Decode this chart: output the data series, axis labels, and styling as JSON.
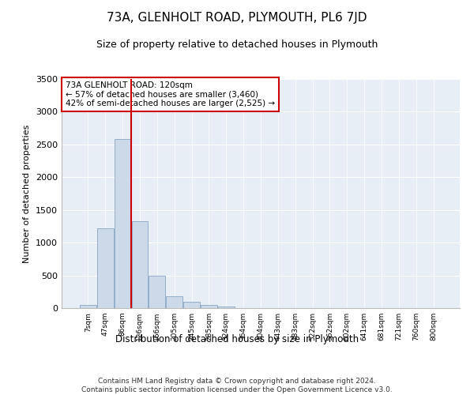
{
  "title": "73A, GLENHOLT ROAD, PLYMOUTH, PL6 7JD",
  "subtitle": "Size of property relative to detached houses in Plymouth",
  "xlabel": "Distribution of detached houses by size in Plymouth",
  "ylabel": "Number of detached properties",
  "bar_color": "#ccd9e8",
  "bar_edge_color": "#7799bb",
  "vline_color": "#cc0000",
  "annotation_text": "73A GLENHOLT ROAD: 120sqm\n← 57% of detached houses are smaller (3,460)\n42% of semi-detached houses are larger (2,525) →",
  "categories": [
    "7sqm",
    "47sqm",
    "86sqm",
    "126sqm",
    "166sqm",
    "205sqm",
    "245sqm",
    "285sqm",
    "324sqm",
    "364sqm",
    "404sqm",
    "443sqm",
    "483sqm",
    "522sqm",
    "562sqm",
    "602sqm",
    "641sqm",
    "681sqm",
    "721sqm",
    "760sqm",
    "800sqm"
  ],
  "bar_heights": [
    50,
    1220,
    2580,
    1330,
    490,
    185,
    100,
    50,
    30,
    5,
    3,
    0,
    0,
    0,
    0,
    0,
    0,
    0,
    0,
    0,
    0
  ],
  "ylim": [
    0,
    3500
  ],
  "yticks": [
    0,
    500,
    1000,
    1500,
    2000,
    2500,
    3000,
    3500
  ],
  "footer": "Contains HM Land Registry data © Crown copyright and database right 2024.\nContains public sector information licensed under the Open Government Licence v3.0.",
  "bg_color": "#ffffff",
  "plot_bg_color": "#e8eef5",
  "annotation_box_color": "white",
  "annotation_box_edge_color": "#cc0000",
  "title_fontsize": 11,
  "subtitle_fontsize": 9,
  "footer_fontsize": 6.5,
  "vline_index": 2.5
}
